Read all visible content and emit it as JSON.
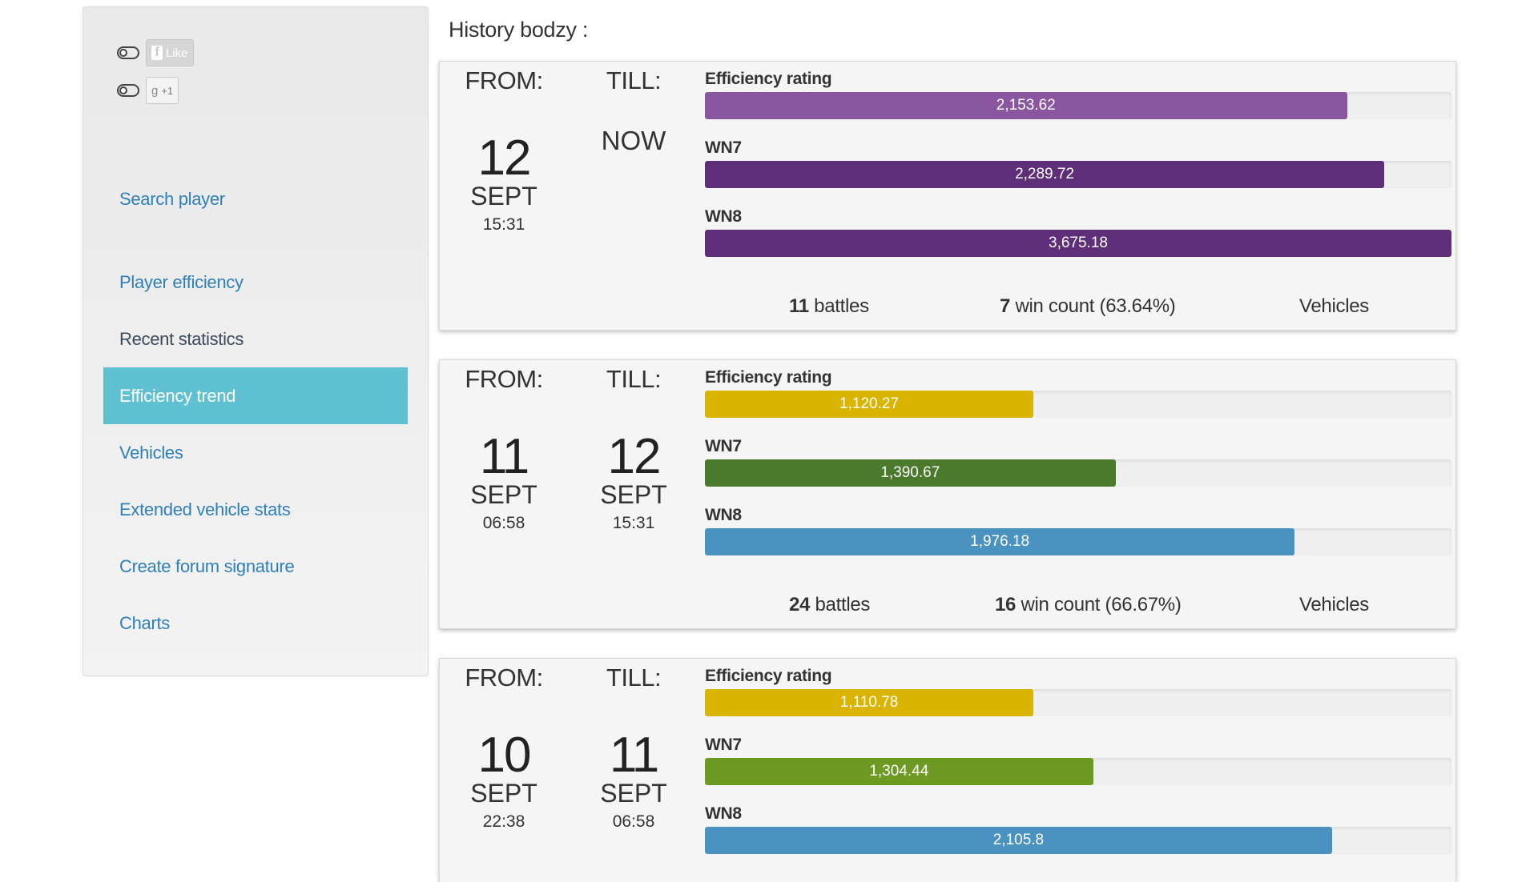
{
  "sidebar": {
    "social": {
      "like_label": "Like",
      "plus_label": "+1"
    },
    "nav": [
      {
        "label": "Search player",
        "active": false
      },
      {
        "label": "Player efficiency",
        "active": false
      },
      {
        "label": "Recent statistics",
        "active": false
      },
      {
        "label": "Efficiency trend",
        "active": true
      },
      {
        "label": "Vehicles",
        "active": false
      },
      {
        "label": "Extended vehicle stats",
        "active": false
      },
      {
        "label": "Create forum signature",
        "active": false
      },
      {
        "label": "Charts",
        "active": false
      }
    ]
  },
  "main": {
    "heading": "History bodzy :",
    "from_label": "FROM:",
    "till_label": "TILL:",
    "metric_labels": {
      "eff": "Efficiency rating",
      "wn7": "WN7",
      "wn8": "WN8"
    },
    "cards": [
      {
        "from": {
          "day": "12",
          "month": "SEPT",
          "time": "15:31"
        },
        "till": {
          "now": "NOW"
        },
        "metrics": [
          {
            "key": "eff",
            "value": "2,153.62",
            "fraction": 0.86,
            "color": "#8a56a0"
          },
          {
            "key": "wn7",
            "value": "2,289.72",
            "fraction": 0.91,
            "color": "#5e2f78"
          },
          {
            "key": "wn8",
            "value": "3,675.18",
            "fraction": 1.0,
            "color": "#5e2f78"
          }
        ],
        "battles": "11",
        "battles_label": "battles",
        "wins": "7",
        "wins_label": "win count (63.64%)",
        "vehicles_label": "Vehicles"
      },
      {
        "from": {
          "day": "11",
          "month": "SEPT",
          "time": "06:58"
        },
        "till": {
          "day": "12",
          "month": "SEPT",
          "time": "15:31"
        },
        "metrics": [
          {
            "key": "eff",
            "value": "1,120.27",
            "fraction": 0.44,
            "color": "#d9b400"
          },
          {
            "key": "wn7",
            "value": "1,390.67",
            "fraction": 0.55,
            "color": "#4a7a2c"
          },
          {
            "key": "wn8",
            "value": "1,976.18",
            "fraction": 0.79,
            "color": "#4a93c0"
          }
        ],
        "battles": "24",
        "battles_label": "battles",
        "wins": "16",
        "wins_label": "win count (66.67%)",
        "vehicles_label": "Vehicles"
      },
      {
        "from": {
          "day": "10",
          "month": "SEPT",
          "time": "22:38"
        },
        "till": {
          "day": "11",
          "month": "SEPT",
          "time": "06:58"
        },
        "metrics": [
          {
            "key": "eff",
            "value": "1,110.78",
            "fraction": 0.44,
            "color": "#d9b400"
          },
          {
            "key": "wn7",
            "value": "1,304.44",
            "fraction": 0.52,
            "color": "#6c9a22"
          },
          {
            "key": "wn8",
            "value": "2,105.8",
            "fraction": 0.84,
            "color": "#4a93c0"
          }
        ]
      }
    ]
  }
}
